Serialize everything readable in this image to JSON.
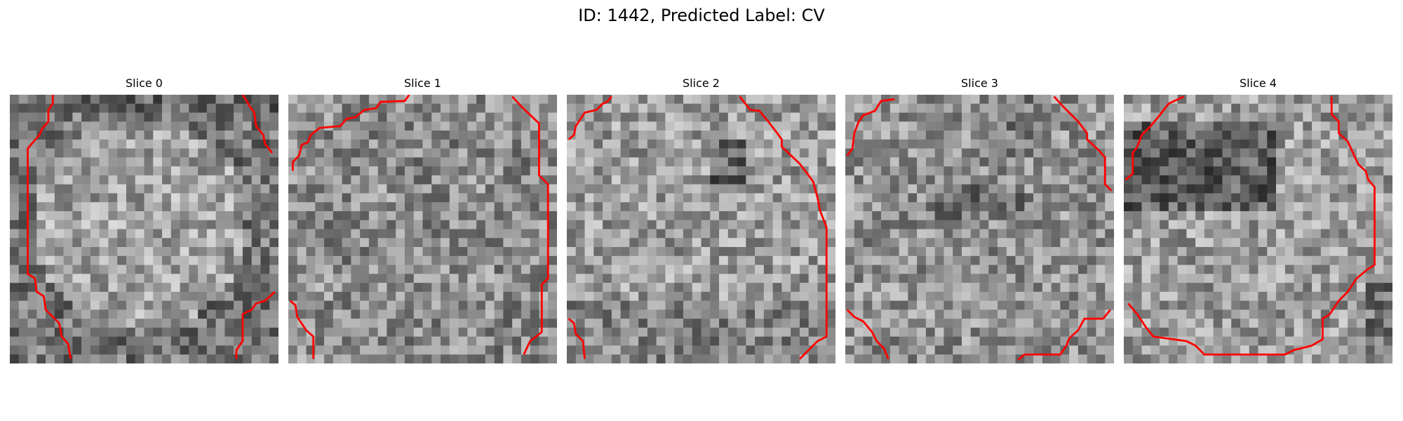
{
  "figure": {
    "title": "ID: 1442, Predicted Label: CV"
  },
  "panels": [
    {
      "title": "Slice 0"
    },
    {
      "title": "Slice 1"
    },
    {
      "title": "Slice 2"
    },
    {
      "title": "Slice 3"
    },
    {
      "title": "Slice 4"
    }
  ],
  "colors": {
    "contour": "#ff0000",
    "background": "#ffffff"
  }
}
